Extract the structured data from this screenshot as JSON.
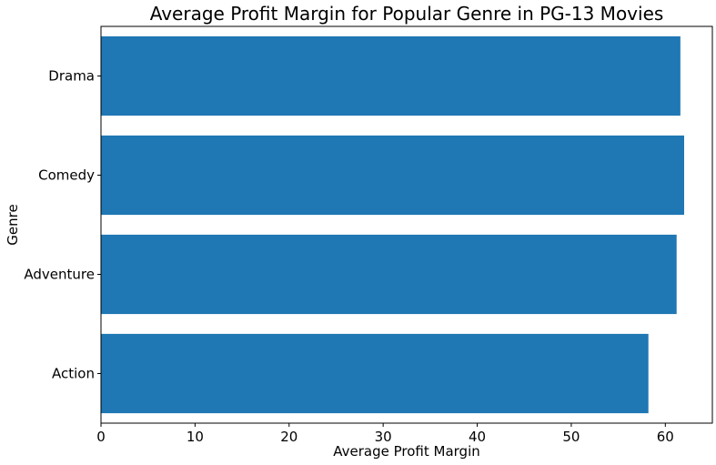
{
  "chart_data": {
    "type": "bar",
    "orientation": "horizontal",
    "title": "Average Profit Margin for Popular Genre in PG-13 Movies",
    "xlabel": "Average Profit Margin",
    "ylabel": "Genre",
    "categories": [
      "Action",
      "Adventure",
      "Comedy",
      "Drama"
    ],
    "values": [
      58.2,
      61.2,
      62.0,
      61.6
    ],
    "xlim": [
      0,
      65
    ],
    "xticks": [
      0,
      10,
      20,
      30,
      40,
      50,
      60
    ],
    "grid": false,
    "bar_color": "#1f77b4"
  }
}
